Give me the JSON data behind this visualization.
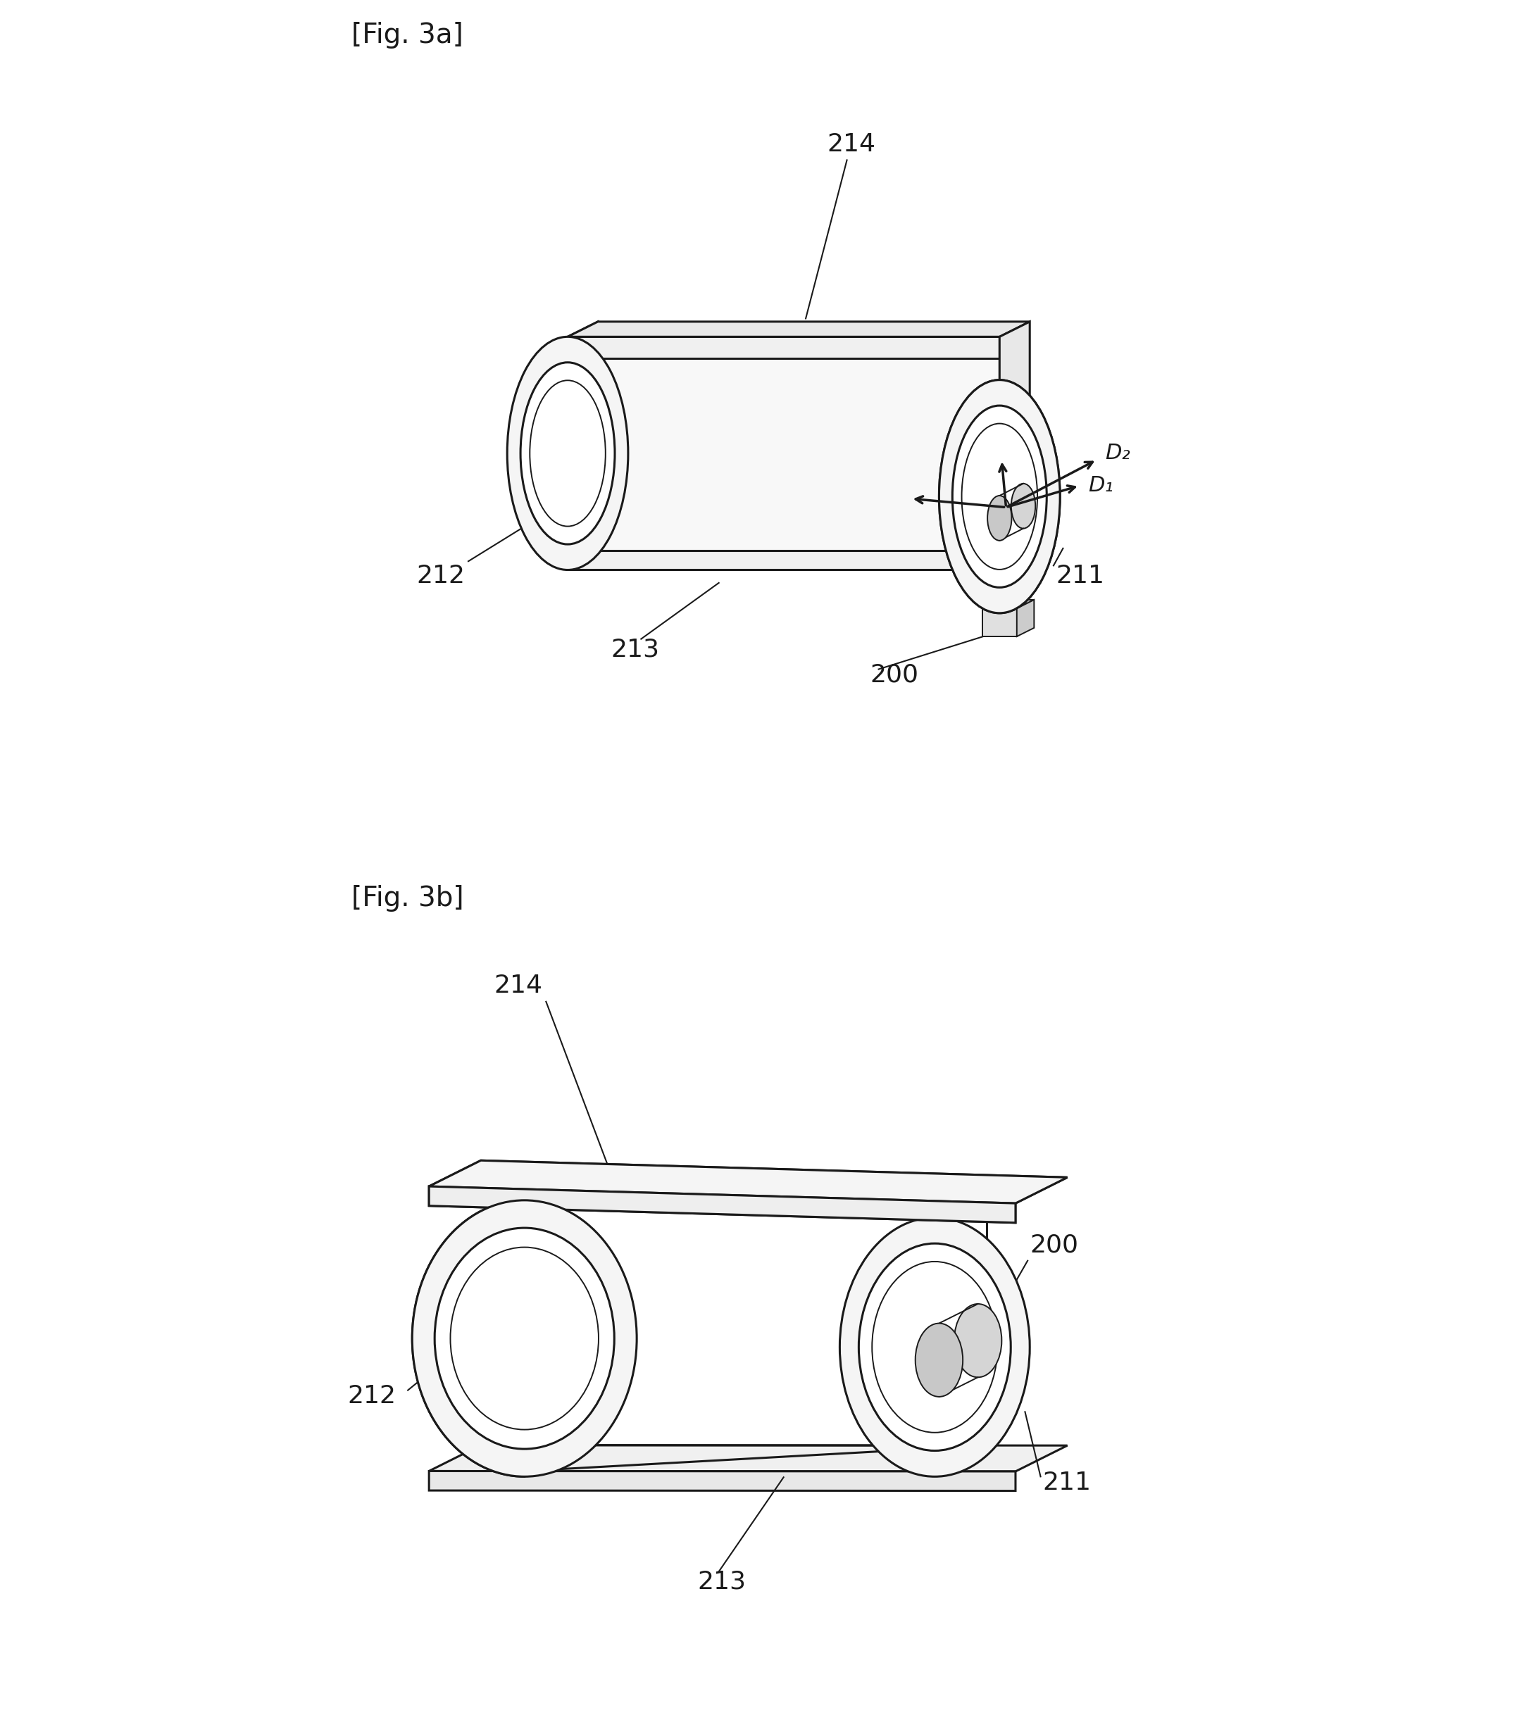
{
  "fig_label_3a": "[Fig. 3a]",
  "fig_label_3b": "[Fig. 3b]",
  "line_color": "#1a1a1a",
  "bg_color": "#ffffff",
  "lw_main": 2.2,
  "lw_thin": 1.4,
  "font_size_label": 26,
  "font_size_fig": 28,
  "labels": {
    "200": "200",
    "211": "211",
    "212": "212",
    "213": "213",
    "214": "214",
    "D1": "D₁",
    "D2": "D₂"
  }
}
